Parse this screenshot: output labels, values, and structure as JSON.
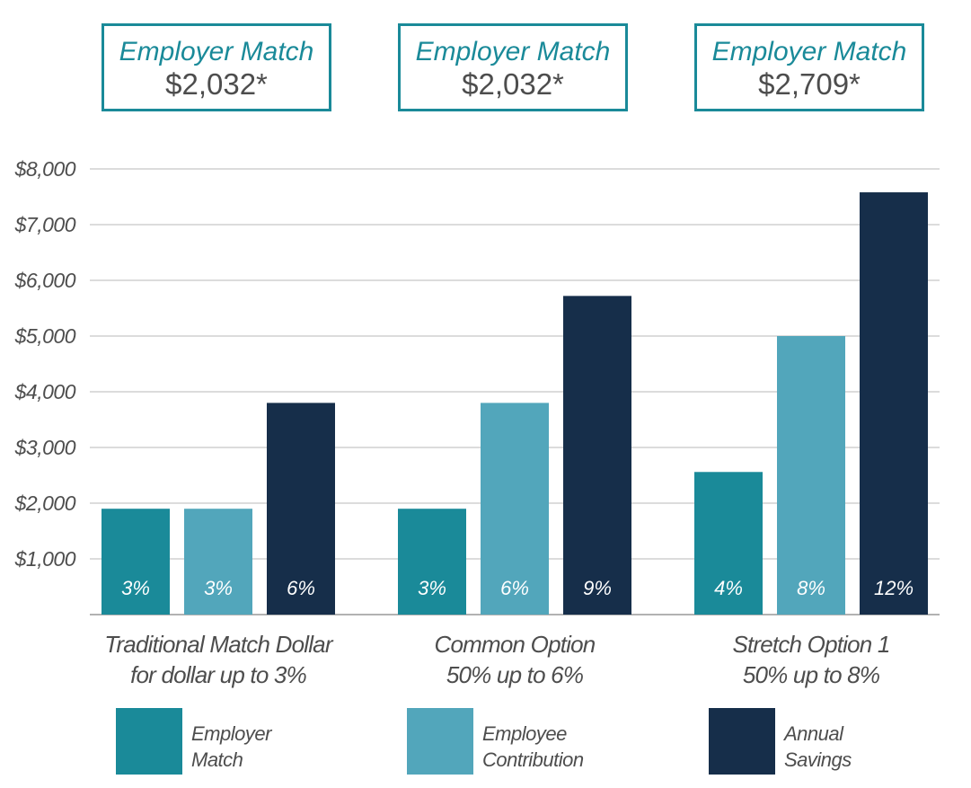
{
  "callouts": [
    {
      "title": "Employer Match",
      "value": "$2,032*"
    },
    {
      "title": "Employer Match",
      "value": "$2,032*"
    },
    {
      "title": "Employer Match",
      "value": "$2,709*"
    }
  ],
  "colors": {
    "employer": "#1a8a99",
    "employee": "#52a6bb",
    "annual": "#162e4a",
    "grid": "#c8c8c8",
    "axis": "#999999",
    "text": "#4d4d4d"
  },
  "chart_data": {
    "type": "bar",
    "title": "",
    "xlabel": "",
    "ylabel": "",
    "ylim": [
      0,
      8000
    ],
    "yticks": [
      {
        "value": 1000,
        "label": "$1,000"
      },
      {
        "value": 2000,
        "label": "$2,000"
      },
      {
        "value": 3000,
        "label": "$3,000"
      },
      {
        "value": 4000,
        "label": "$4,000"
      },
      {
        "value": 5000,
        "label": "$5,000"
      },
      {
        "value": 6000,
        "label": "$6,000"
      },
      {
        "value": 7000,
        "label": "$7,000"
      },
      {
        "value": 8000,
        "label": "$8,000"
      }
    ],
    "categories": [
      [
        "Traditional Match Dollar",
        "for dollar up to 3%"
      ],
      [
        "Common Option",
        "50%  up to 6%"
      ],
      [
        "Stretch Option 1",
        "50%  up to 8%"
      ]
    ],
    "series": [
      {
        "name": "Employer Match",
        "values": [
          1900,
          1900,
          2560
        ],
        "bar_labels": [
          "3%",
          "3%",
          "4%"
        ]
      },
      {
        "name": "Employee Contribution",
        "values": [
          1900,
          3800,
          5000
        ],
        "bar_labels": [
          "3%",
          "6%",
          "8%"
        ]
      },
      {
        "name": "Annual Savings",
        "values": [
          3800,
          5720,
          7580
        ],
        "bar_labels": [
          "6%",
          "9%",
          "12%"
        ]
      }
    ],
    "legend": [
      {
        "line1": "Employer",
        "line2": "Match"
      },
      {
        "line1": "Employee",
        "line2": "Contribution"
      },
      {
        "line1": "Annual",
        "line2": "Savings"
      }
    ],
    "legend_position": "bottom"
  }
}
